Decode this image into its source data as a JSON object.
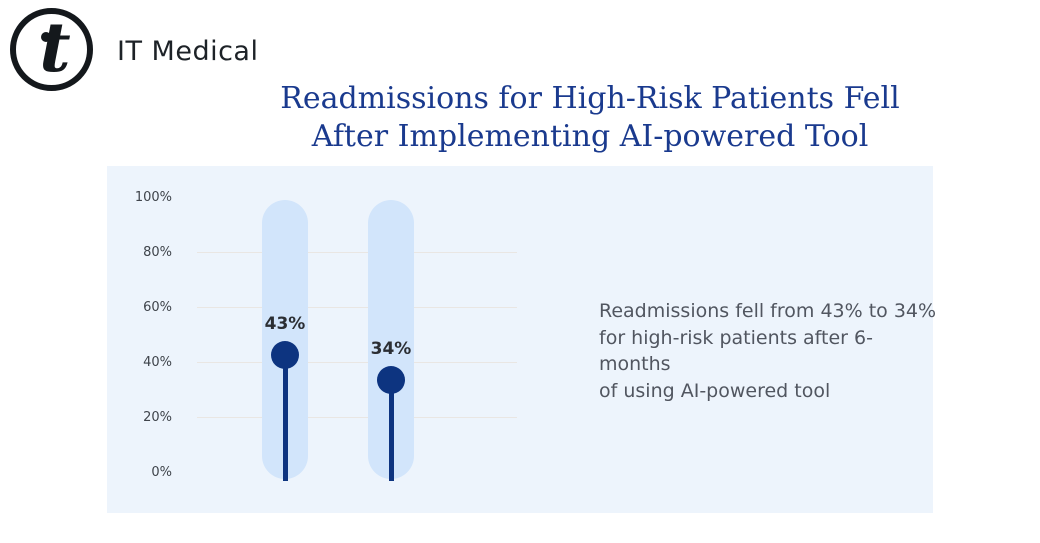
{
  "brand": {
    "name": "IT Medical",
    "logo_glyph": "t"
  },
  "title": {
    "line1": "Readmissions for High-Risk Patients Fell",
    "line2": "After Implementing AI-powered Tool"
  },
  "annotation": {
    "lines": [
      "Readmissions fell from 43% to 34%",
      "for high-risk patients after 6-months",
      "of using AI-powered tool"
    ]
  },
  "chart_data": {
    "type": "bar",
    "style": "vertical-slider-indicators",
    "values": [
      43,
      34
    ],
    "point_labels": [
      "43%",
      "34%"
    ],
    "y_tick_labels": [
      "100%",
      "80%",
      "60%",
      "40%",
      "20%",
      "0%"
    ],
    "ylim": [
      0,
      100
    ],
    "gridlines_at": [
      80,
      60,
      40,
      20
    ],
    "grid": "horizontal-partial",
    "legend": "none",
    "colors": {
      "panel_background": "#edf4fc",
      "track": "#d2e5fb",
      "marker": "#0d3480",
      "title": "#1a3a8e",
      "gridline": "#e9e6e3",
      "annotation_text": "#515660"
    }
  }
}
